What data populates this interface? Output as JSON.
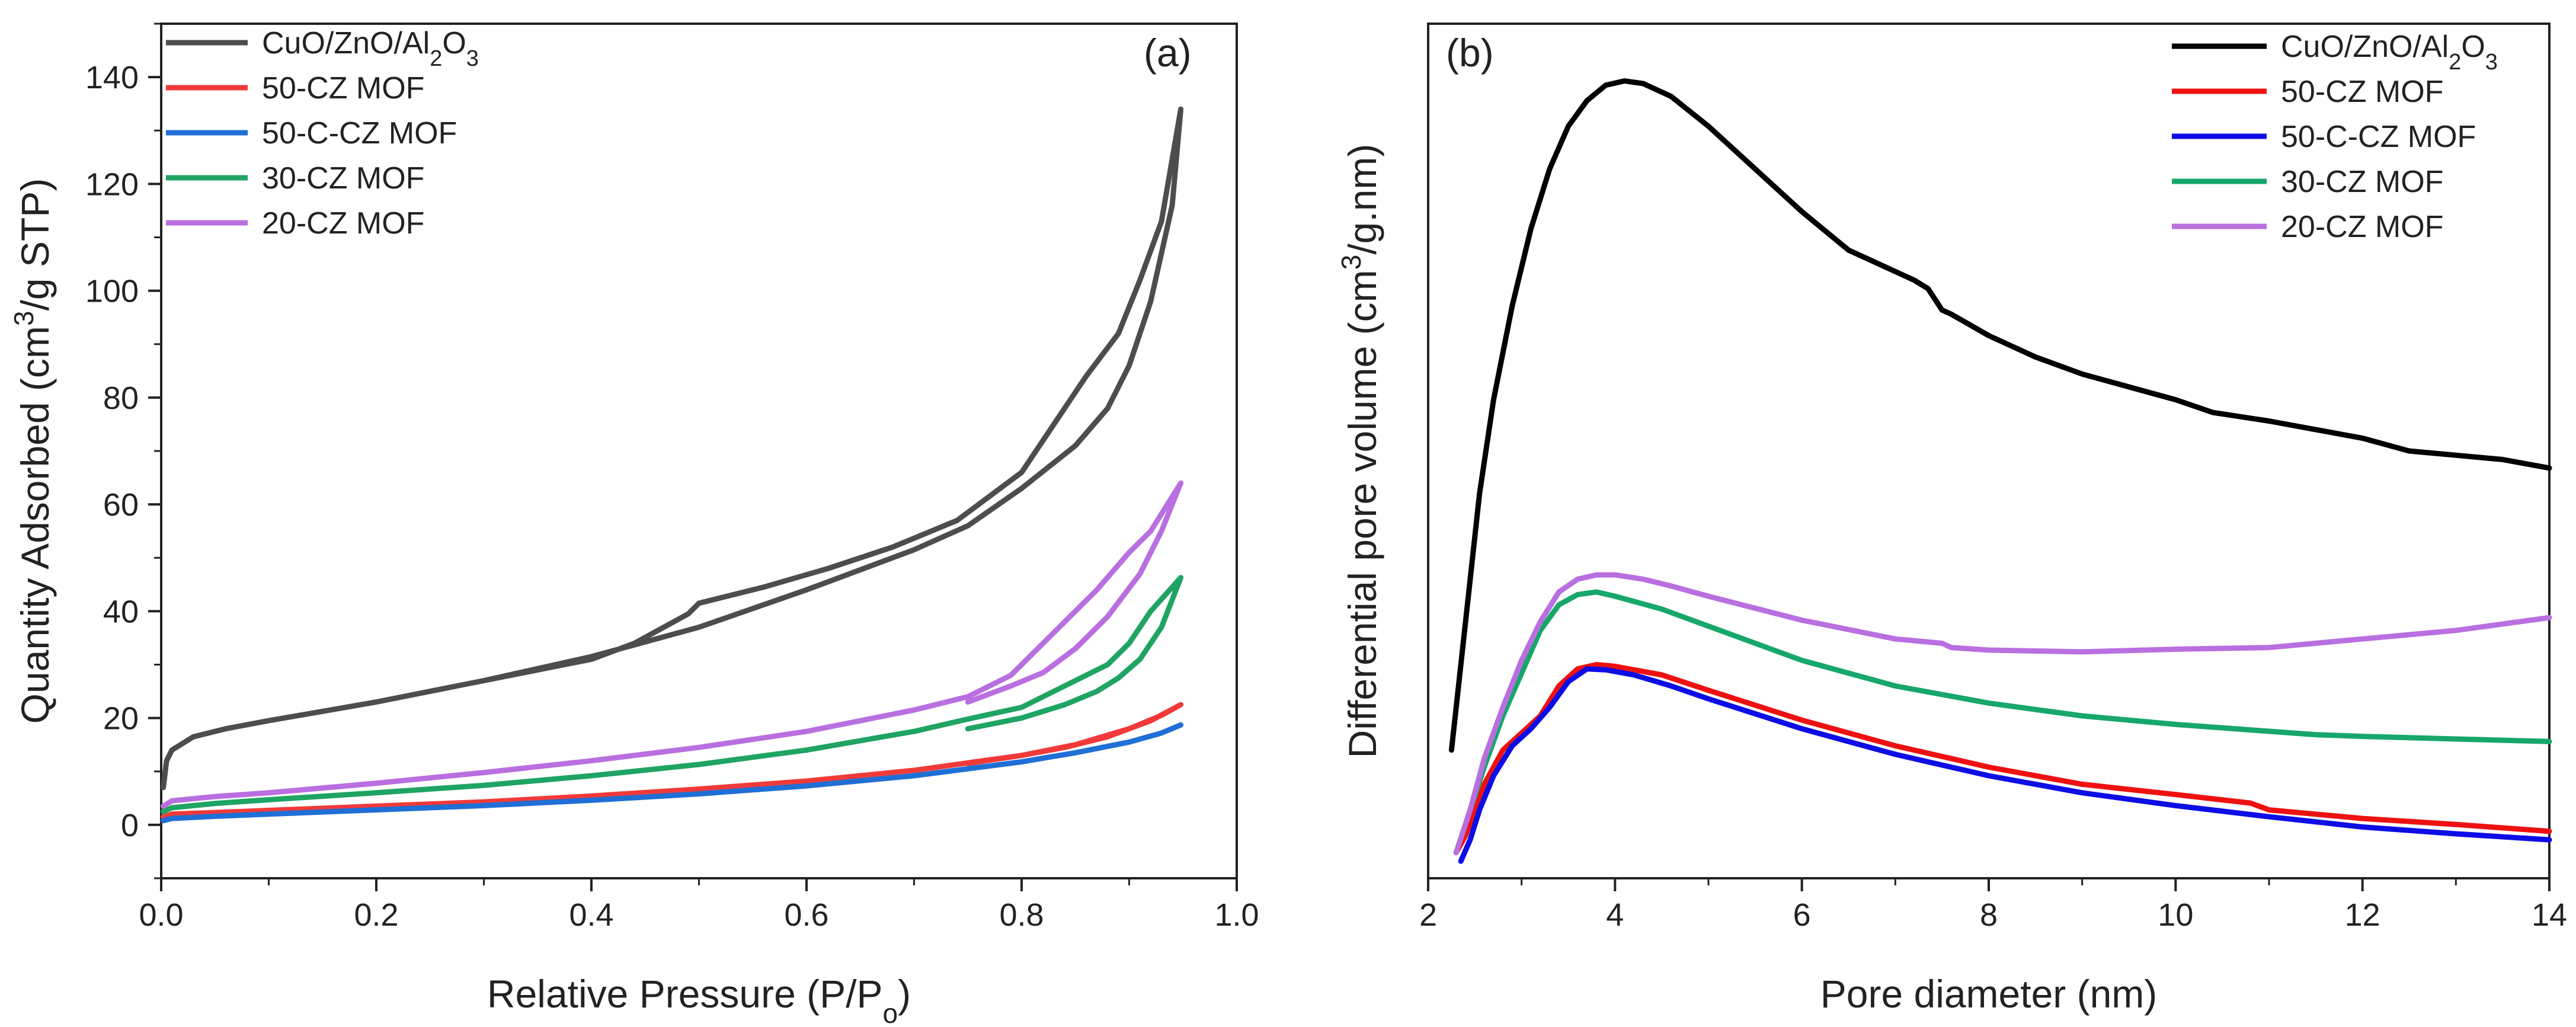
{
  "chart_data": [
    {
      "type": "line",
      "panel_label": "(a)",
      "xlabel": "Relative Pressure (P/P",
      "xlabel_sub": "o",
      "xlabel_end": ")",
      "ylabel_pre": "Quantity Adsorbed (cm",
      "ylabel_sup": "3",
      "ylabel_post": "/g STP)",
      "xlim": [
        0.0,
        1.0
      ],
      "ylim": [
        -10,
        150
      ],
      "xticks": [
        "0.0",
        "0.2",
        "0.4",
        "0.6",
        "0.8",
        "1.0"
      ],
      "yticks": [
        "0",
        "20",
        "40",
        "60",
        "80",
        "100",
        "120",
        "140"
      ],
      "legend_position": "top-left",
      "series": [
        {
          "name": "CuO/ZnO/Al2O3",
          "label_parts": [
            "CuO/ZnO/Al",
            "2",
            "O",
            "3"
          ],
          "color": "#4d4d4d",
          "x": [
            0.002,
            0.005,
            0.01,
            0.03,
            0.06,
            0.1,
            0.2,
            0.3,
            0.4,
            0.5,
            0.6,
            0.7,
            0.75,
            0.8,
            0.85,
            0.88,
            0.9,
            0.92,
            0.94,
            0.948,
            0.93,
            0.91,
            0.89,
            0.86,
            0.84,
            0.8,
            0.74,
            0.68,
            0.62,
            0.56,
            0.5,
            0.49,
            0.44,
            0.4,
            0.35,
            0.3
          ],
          "y": [
            7,
            12,
            14,
            16.5,
            18,
            19.5,
            23,
            27,
            31.5,
            37,
            44,
            51.5,
            56,
            63,
            71,
            78,
            86,
            98,
            116,
            134,
            113,
            102,
            92,
            84,
            78,
            66,
            57,
            52,
            48,
            44.5,
            41.5,
            39.5,
            34,
            31,
            29,
            27
          ]
        },
        {
          "name": "50-CZ MOF",
          "label_parts": [
            "50-CZ MOF"
          ],
          "color": "#f03a3a",
          "x": [
            0.002,
            0.01,
            0.05,
            0.1,
            0.2,
            0.3,
            0.4,
            0.5,
            0.6,
            0.7,
            0.8,
            0.85,
            0.9,
            0.93,
            0.948,
            0.92,
            0.88,
            0.84,
            0.8,
            0.75
          ],
          "y": [
            1.5,
            2.0,
            2.3,
            2.7,
            3.5,
            4.3,
            5.4,
            6.7,
            8.2,
            10.2,
            13,
            15,
            18,
            20.5,
            22.5,
            19.5,
            16.5,
            14.5,
            13,
            11.5
          ]
        },
        {
          "name": "50-C-CZ MOF",
          "label_parts": [
            "50-C-CZ MOF"
          ],
          "color": "#1f6fd6",
          "x": [
            0.002,
            0.01,
            0.05,
            0.1,
            0.2,
            0.3,
            0.4,
            0.5,
            0.6,
            0.7,
            0.8,
            0.85,
            0.9,
            0.93,
            0.948
          ],
          "y": [
            0.8,
            1.2,
            1.6,
            2.0,
            2.8,
            3.6,
            4.6,
            5.8,
            7.3,
            9.2,
            11.8,
            13.5,
            15.5,
            17.2,
            18.7
          ]
        },
        {
          "name": "30-CZ MOF",
          "label_parts": [
            "30-CZ MOF"
          ],
          "color": "#1fa463",
          "x": [
            0.002,
            0.01,
            0.05,
            0.1,
            0.2,
            0.3,
            0.4,
            0.5,
            0.6,
            0.7,
            0.75,
            0.8,
            0.84,
            0.88,
            0.9,
            0.92,
            0.948,
            0.93,
            0.91,
            0.89,
            0.87,
            0.84,
            0.8,
            0.75
          ],
          "y": [
            2.5,
            3.2,
            4.0,
            4.7,
            6.0,
            7.4,
            9.2,
            11.3,
            14,
            17.5,
            19.8,
            22,
            26,
            30,
            34,
            40,
            46.3,
            37,
            31,
            27.5,
            25,
            22.5,
            20,
            18
          ]
        },
        {
          "name": "20-CZ MOF",
          "label_parts": [
            "20-CZ MOF"
          ],
          "color": "#b96fe0",
          "x": [
            0.002,
            0.01,
            0.05,
            0.1,
            0.2,
            0.3,
            0.4,
            0.5,
            0.6,
            0.7,
            0.75,
            0.79,
            0.83,
            0.87,
            0.9,
            0.92,
            0.948,
            0.93,
            0.91,
            0.88,
            0.85,
            0.82,
            0.79,
            0.75
          ],
          "y": [
            3.5,
            4.5,
            5.3,
            6.0,
            7.8,
            9.8,
            12,
            14.5,
            17.5,
            21.5,
            24,
            28,
            36,
            44,
            51,
            55,
            64,
            55,
            47,
            39,
            33,
            28.5,
            26,
            23
          ]
        }
      ]
    },
    {
      "type": "line",
      "panel_label": "(b)",
      "xlabel": "Pore diameter (nm)",
      "ylabel_pre": "Differential pore volume (cm",
      "ylabel_sup": "3",
      "ylabel_post": "/g.nm)",
      "xlim": [
        2,
        14
      ],
      "ylim": [
        0,
        100
      ],
      "xticks": [
        "2",
        "4",
        "6",
        "8",
        "10",
        "12",
        "14"
      ],
      "yticks": [],
      "legend_position": "top-right",
      "series": [
        {
          "name": "CuO/ZnO/Al2O3",
          "label_parts": [
            "CuO/ZnO/Al",
            "2",
            "O",
            "3"
          ],
          "color": "#000000",
          "x": [
            2.25,
            2.4,
            2.55,
            2.7,
            2.9,
            3.1,
            3.3,
            3.5,
            3.7,
            3.9,
            4.1,
            4.3,
            4.6,
            5.0,
            5.5,
            6.0,
            6.5,
            6.7,
            7.0,
            7.2,
            7.35,
            7.5,
            7.6,
            8.0,
            8.5,
            9.0,
            9.5,
            10.0,
            10.4,
            11.0,
            11.5,
            12.0,
            12.5,
            13.0,
            13.5,
            14.0
          ],
          "y": [
            15,
            30,
            45,
            56,
            67,
            76,
            83,
            88,
            91,
            92.8,
            93.3,
            93,
            91.5,
            88,
            83,
            78,
            73.5,
            72.5,
            71,
            70,
            69,
            66.5,
            66,
            63.5,
            61,
            59,
            57.5,
            56,
            54.5,
            53.5,
            52.5,
            51.5,
            50,
            49.5,
            49,
            48
          ]
        },
        {
          "name": "50-CZ MOF",
          "label_parts": [
            "50-CZ MOF"
          ],
          "color": "#ee1111",
          "x": [
            2.3,
            2.4,
            2.5,
            2.6,
            2.8,
            3.0,
            3.2,
            3.4,
            3.6,
            3.8,
            4.0,
            4.5,
            5.0,
            6.0,
            7.0,
            8.0,
            9.0,
            10.0,
            10.8,
            11.0,
            12.0,
            13.0,
            14.0
          ],
          "y": [
            3,
            5,
            8,
            11,
            15,
            17,
            19,
            22.5,
            24.5,
            25,
            24.8,
            23.8,
            22,
            18.5,
            15.5,
            13,
            11,
            9.8,
            8.8,
            8,
            7,
            6.3,
            5.5
          ]
        },
        {
          "name": "50-C-CZ MOF",
          "label_parts": [
            "50-C-CZ MOF"
          ],
          "color": "#0d0de6",
          "x": [
            2.35,
            2.45,
            2.55,
            2.7,
            2.9,
            3.1,
            3.3,
            3.5,
            3.7,
            3.9,
            4.2,
            4.6,
            5.0,
            6.0,
            7.0,
            8.0,
            9.0,
            10.0,
            11.0,
            12.0,
            13.0,
            14.0
          ],
          "y": [
            2,
            4.5,
            8,
            12,
            15.5,
            17.5,
            20,
            23,
            24.5,
            24.4,
            23.8,
            22.5,
            21,
            17.5,
            14.5,
            12,
            10,
            8.5,
            7.2,
            6,
            5.2,
            4.5
          ]
        },
        {
          "name": "30-CZ MOF",
          "label_parts": [
            "30-CZ MOF"
          ],
          "color": "#17a76a",
          "x": [
            2.3,
            2.45,
            2.6,
            2.8,
            3.0,
            3.2,
            3.4,
            3.6,
            3.8,
            4.0,
            4.5,
            5.0,
            6.0,
            7.0,
            8.0,
            9.0,
            10.0,
            11.0,
            11.5,
            12.0,
            13.0,
            14.0
          ],
          "y": [
            3,
            8,
            13,
            19,
            24,
            29,
            32,
            33.2,
            33.5,
            33,
            31.5,
            29.5,
            25.5,
            22.5,
            20.5,
            19,
            18,
            17.2,
            16.8,
            16.6,
            16.3,
            16
          ]
        },
        {
          "name": "20-CZ MOF",
          "label_parts": [
            "20-CZ MOF"
          ],
          "color": "#b96fe0",
          "x": [
            2.3,
            2.45,
            2.6,
            2.8,
            3.0,
            3.2,
            3.4,
            3.6,
            3.8,
            4.0,
            4.3,
            4.6,
            5.0,
            6.0,
            7.0,
            7.5,
            7.6,
            8.0,
            9.0,
            10.0,
            11.0,
            12.0,
            13.0,
            14.0
          ],
          "y": [
            3,
            8,
            14,
            20,
            25.5,
            30,
            33.5,
            35,
            35.5,
            35.5,
            35,
            34.2,
            33,
            30.2,
            28,
            27.5,
            27,
            26.7,
            26.5,
            26.8,
            27,
            28,
            29,
            30.5
          ]
        }
      ]
    }
  ]
}
